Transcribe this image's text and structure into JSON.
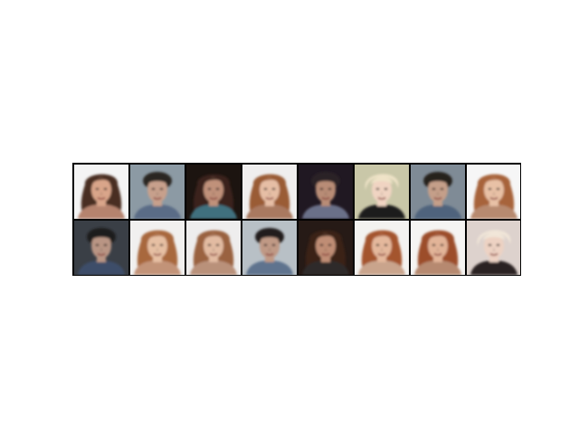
{
  "figure": {
    "rows": 2,
    "columns": 8,
    "tiles": [
      {
        "bg": "#f4f4f4",
        "hair": "#4a2e22",
        "hair_style": "long-wavy",
        "skin": "#d9a58a",
        "clothing": "#b5836e"
      },
      {
        "bg": "#8c9aa4",
        "hair": "#2a2624",
        "hair_style": "short",
        "skin": "#c7a08c",
        "clothing": "#5a6c86"
      },
      {
        "bg": "#1c1410",
        "hair": "#3a241a",
        "hair_style": "long",
        "skin": "#c0917a",
        "clothing": "#3f6f7e"
      },
      {
        "bg": "#efeeee",
        "hair": "#9a5b34",
        "hair_style": "long-wavy",
        "skin": "#e6bea5",
        "clothing": "#a97961"
      },
      {
        "bg": "#201822",
        "hair": "#2b2226",
        "hair_style": "short",
        "skin": "#b88c76",
        "clothing": "#6b6f88"
      },
      {
        "bg": "#c9c7a8",
        "hair": "#efe3c7",
        "hair_style": "short-blond",
        "skin": "#f0d4c2",
        "clothing": "#1d1a1a"
      },
      {
        "bg": "#7f8b96",
        "hair": "#27231f",
        "hair_style": "short",
        "skin": "#c59f89",
        "clothing": "#4f637d"
      },
      {
        "bg": "#f6f6f6",
        "hair": "#a7633a",
        "hair_style": "long-wavy",
        "skin": "#e8c1a6",
        "clothing": "#b78a70"
      },
      {
        "bg": "#3a3f46",
        "hair": "#1f1c1c",
        "hair_style": "short",
        "skin": "#b99584",
        "clothing": "#3c4d69"
      },
      {
        "bg": "#f1f0ef",
        "hair": "#a8683e",
        "hair_style": "long-wavy",
        "skin": "#e6bfa3",
        "clothing": "#c29378"
      },
      {
        "bg": "#eeeded",
        "hair": "#9a6241",
        "hair_style": "long-wavy",
        "skin": "#e2bba2",
        "clothing": "#b9917a"
      },
      {
        "bg": "#b8c0c6",
        "hair": "#211d1b",
        "hair_style": "short",
        "skin": "#c09985",
        "clothing": "#5e738e"
      },
      {
        "bg": "#261a16",
        "hair": "#3a2219",
        "hair_style": "long",
        "skin": "#bf8d74",
        "clothing": "#2f2a2a"
      },
      {
        "bg": "#f3f2f0",
        "hair": "#a4552d",
        "hair_style": "long-wavy",
        "skin": "#e4b89c",
        "clothing": "#c9a48c"
      },
      {
        "bg": "#f5f4f2",
        "hair": "#9c4d2a",
        "hair_style": "long-wavy",
        "skin": "#e2b498",
        "clothing": "#b6896f"
      },
      {
        "bg": "#ddd2cd",
        "hair": "#f1e6d8",
        "hair_style": "short-blond",
        "skin": "#edd2c3",
        "clothing": "#2a2422"
      }
    ]
  }
}
